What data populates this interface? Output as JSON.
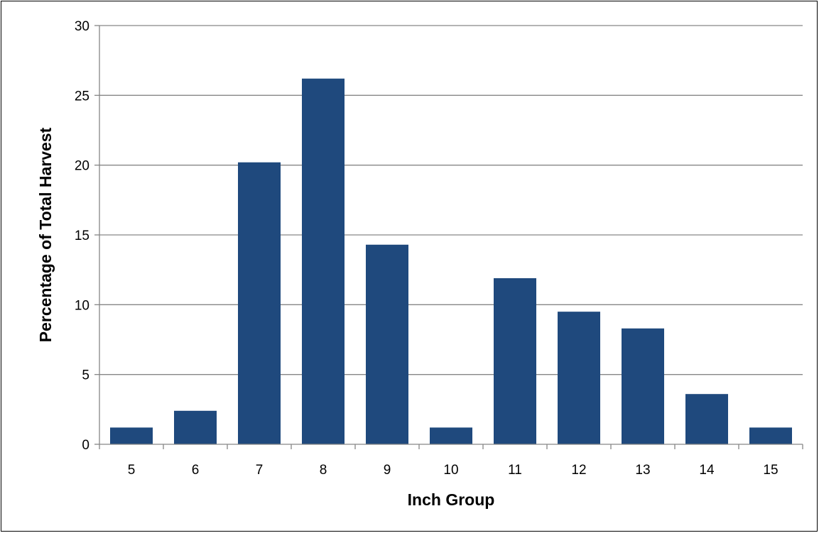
{
  "colors": {
    "bar": "#1f497d",
    "grid": "#868686",
    "axis": "#868686",
    "text": "#000000",
    "frame": "#000000"
  },
  "chart_data": {
    "type": "bar",
    "xlabel": "Inch Group",
    "ylabel": "Percentage of Total Harvest",
    "categories": [
      "5",
      "6",
      "7",
      "8",
      "9",
      "10",
      "11",
      "12",
      "13",
      "14",
      "15"
    ],
    "series": [
      {
        "values": [
          1.2,
          2.4,
          20.2,
          26.2,
          14.3,
          1.2,
          11.9,
          9.5,
          8.3,
          3.6,
          1.2
        ]
      }
    ],
    "ylim": [
      0,
      30
    ],
    "yticks": [
      0,
      5,
      10,
      15,
      20,
      25,
      30
    ],
    "grid": true,
    "legend": "none"
  }
}
